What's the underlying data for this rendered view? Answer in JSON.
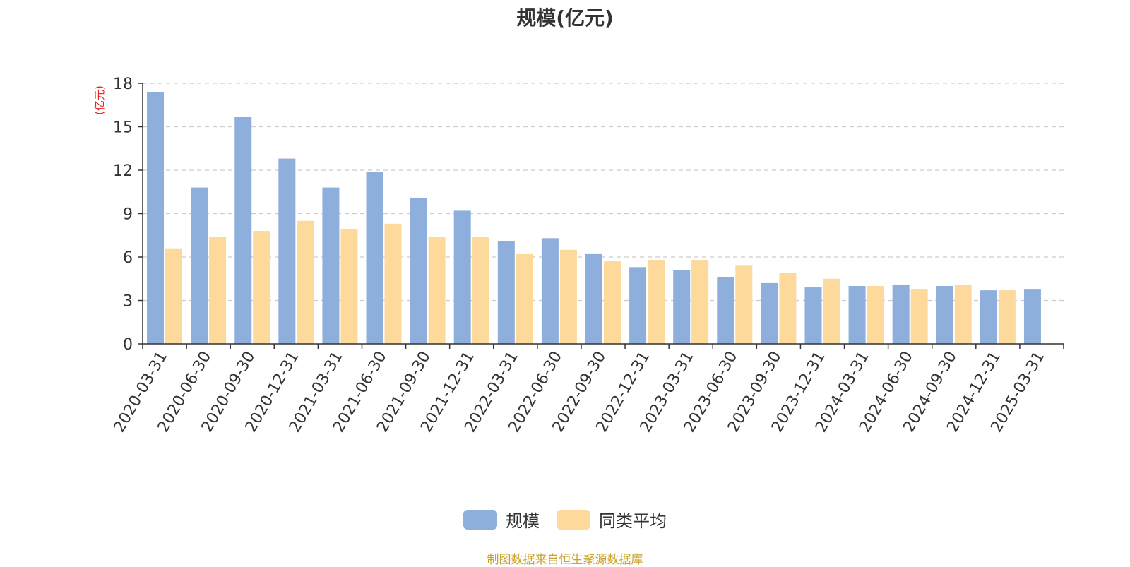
{
  "chart_data": {
    "type": "bar",
    "title": "规模(亿元)",
    "ylabel": "(亿元)",
    "xlabel": "",
    "ylim": [
      0,
      18
    ],
    "yticks": [
      0,
      3,
      6,
      9,
      12,
      15,
      18
    ],
    "grid": "horizontal-dashed",
    "legend_position": "bottom-center",
    "categories": [
      "2020-03-31",
      "2020-06-30",
      "2020-09-30",
      "2020-12-31",
      "2021-03-31",
      "2021-06-30",
      "2021-09-30",
      "2021-12-31",
      "2022-03-31",
      "2022-06-30",
      "2022-09-30",
      "2022-12-31",
      "2023-03-31",
      "2023-06-30",
      "2023-09-30",
      "2023-12-31",
      "2024-03-31",
      "2024-06-30",
      "2024-09-30",
      "2024-12-31",
      "2025-03-31"
    ],
    "series": [
      {
        "name": "规模",
        "color": "#8eaedb",
        "values": [
          17.4,
          10.8,
          15.7,
          12.8,
          10.8,
          11.9,
          10.1,
          9.2,
          7.1,
          7.3,
          6.2,
          5.3,
          5.1,
          4.6,
          4.2,
          3.9,
          4.0,
          4.1,
          4.0,
          3.7,
          3.8
        ]
      },
      {
        "name": "同类平均",
        "color": "#fdd99b",
        "values": [
          6.6,
          7.4,
          7.8,
          8.5,
          7.9,
          8.3,
          7.4,
          7.4,
          6.2,
          6.5,
          5.7,
          5.8,
          5.8,
          5.4,
          4.9,
          4.5,
          4.0,
          3.8,
          4.1,
          3.7,
          null
        ]
      }
    ]
  },
  "ylabel_color": "#e8231e",
  "source_note": "制图数据来自恒生聚源数据库"
}
